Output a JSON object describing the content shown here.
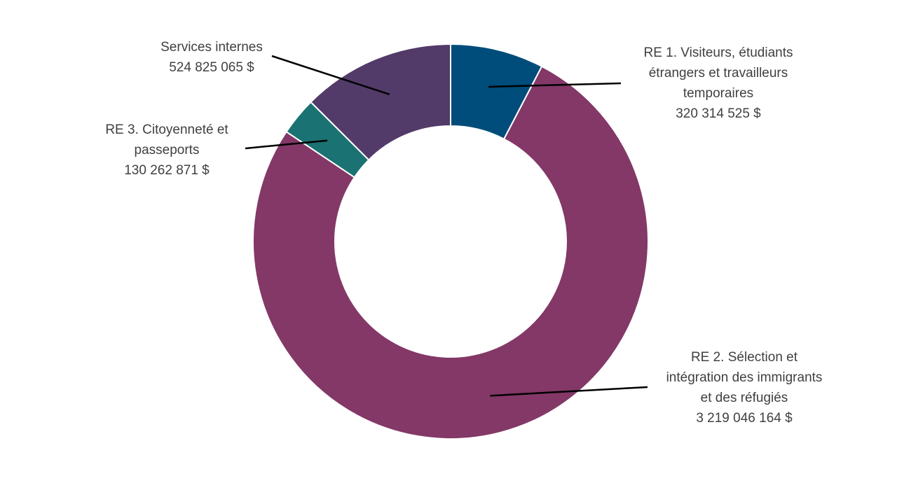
{
  "chart_data": {
    "type": "pie",
    "subtype": "doughnut",
    "title": "",
    "slices": [
      {
        "name": "RE 1. Visiteurs, étudiants étrangers et travailleurs temporaires",
        "label_lines": [
          "RE 1. Visiteurs, étudiants",
          "étrangers et travailleurs",
          "temporaires"
        ],
        "value": 320314525,
        "value_label": "320 314 525 $",
        "color": "#004C7A"
      },
      {
        "name": "RE 2. Sélection et intégration des immigrants et des réfugiés",
        "label_lines": [
          "RE 2. Sélection et",
          "intégration des immigrants",
          "et des réfugiés"
        ],
        "value": 3219046164,
        "value_label": "3 219 046 164 $",
        "color": "#833867"
      },
      {
        "name": "RE 3. Citoyenneté et passeports",
        "label_lines": [
          "RE 3. Citoyenneté et",
          "passeports"
        ],
        "value": 130262871,
        "value_label": "130 262 871 $",
        "color": "#1A7272"
      },
      {
        "name": "Services internes",
        "label_lines": [
          "Services internes"
        ],
        "value": 524825065,
        "value_label": "524 825 065 $",
        "color": "#523A69"
      }
    ]
  }
}
